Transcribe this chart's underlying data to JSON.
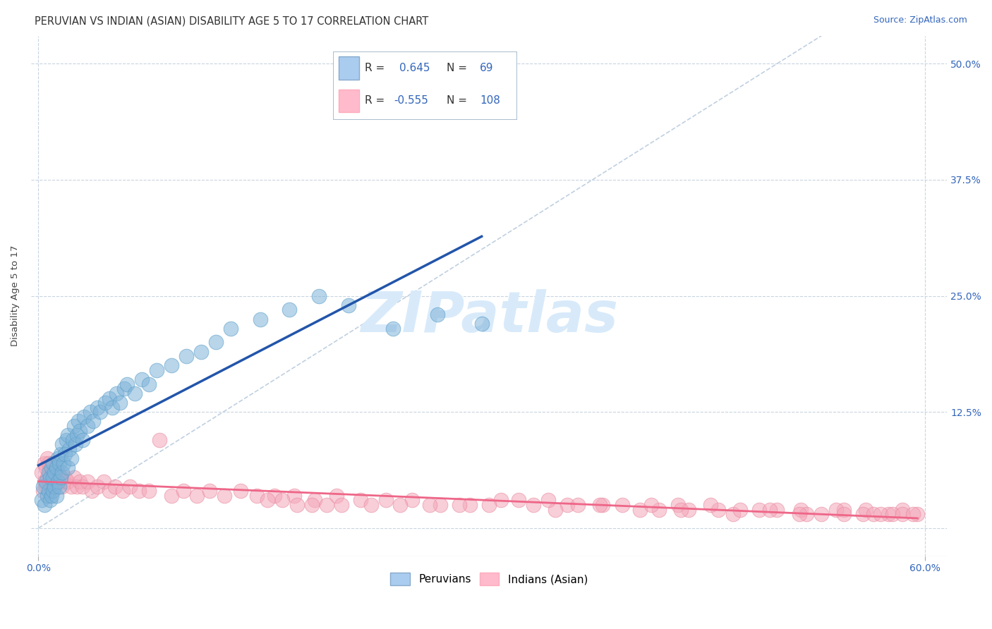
{
  "title": "PERUVIAN VS INDIAN (ASIAN) DISABILITY AGE 5 TO 17 CORRELATION CHART",
  "source": "Source: ZipAtlas.com",
  "ylabel": "Disability Age 5 to 17",
  "xlabel_ticks": [
    0.0,
    0.6
  ],
  "xlabel_labels": [
    "0.0%",
    "60.0%"
  ],
  "ylabel_ticks": [
    0.0,
    0.125,
    0.25,
    0.375,
    0.5
  ],
  "ylabel_labels": [
    "",
    "12.5%",
    "25.0%",
    "37.5%",
    "50.0%"
  ],
  "xlim": [
    -0.005,
    0.615
  ],
  "ylim": [
    -0.03,
    0.53
  ],
  "blue_R": 0.645,
  "blue_N": 69,
  "pink_R": -0.555,
  "pink_N": 108,
  "blue_color": "#7FB3D9",
  "pink_color": "#F4A7B9",
  "blue_edge_color": "#5A9FC9",
  "pink_edge_color": "#E88AA0",
  "blue_line_color": "#2255AA",
  "pink_line_color": "#EE6688",
  "diag_line_color": "#C0D0E0",
  "background_color": "#FFFFFF",
  "grid_color": "#C8D4E0",
  "watermark_text": "ZIPatlas",
  "watermark_color": "#D8EAFA",
  "title_fontsize": 10.5,
  "source_fontsize": 9,
  "axis_label_fontsize": 9.5,
  "tick_fontsize": 10,
  "legend_fontsize": 11,
  "blue_scatter_x": [
    0.002,
    0.003,
    0.004,
    0.005,
    0.006,
    0.007,
    0.007,
    0.008,
    0.008,
    0.009,
    0.009,
    0.01,
    0.01,
    0.01,
    0.011,
    0.011,
    0.012,
    0.012,
    0.013,
    0.013,
    0.014,
    0.014,
    0.015,
    0.015,
    0.016,
    0.016,
    0.017,
    0.018,
    0.019,
    0.02,
    0.02,
    0.021,
    0.022,
    0.023,
    0.024,
    0.025,
    0.026,
    0.027,
    0.028,
    0.03,
    0.031,
    0.033,
    0.035,
    0.037,
    0.04,
    0.042,
    0.045,
    0.048,
    0.05,
    0.053,
    0.055,
    0.058,
    0.06,
    0.065,
    0.07,
    0.075,
    0.08,
    0.09,
    0.1,
    0.11,
    0.12,
    0.13,
    0.15,
    0.17,
    0.19,
    0.21,
    0.24,
    0.27,
    0.3
  ],
  "blue_scatter_y": [
    0.03,
    0.045,
    0.025,
    0.05,
    0.035,
    0.04,
    0.06,
    0.03,
    0.055,
    0.035,
    0.065,
    0.04,
    0.055,
    0.07,
    0.045,
    0.06,
    0.035,
    0.065,
    0.05,
    0.075,
    0.045,
    0.07,
    0.055,
    0.08,
    0.06,
    0.09,
    0.07,
    0.08,
    0.095,
    0.065,
    0.1,
    0.085,
    0.075,
    0.095,
    0.11,
    0.09,
    0.1,
    0.115,
    0.105,
    0.095,
    0.12,
    0.11,
    0.125,
    0.115,
    0.13,
    0.125,
    0.135,
    0.14,
    0.13,
    0.145,
    0.135,
    0.15,
    0.155,
    0.145,
    0.16,
    0.155,
    0.17,
    0.175,
    0.185,
    0.19,
    0.2,
    0.215,
    0.225,
    0.235,
    0.25,
    0.24,
    0.215,
    0.23,
    0.22
  ],
  "pink_scatter_x": [
    0.002,
    0.003,
    0.004,
    0.004,
    0.005,
    0.005,
    0.006,
    0.006,
    0.007,
    0.007,
    0.008,
    0.008,
    0.009,
    0.009,
    0.01,
    0.01,
    0.011,
    0.012,
    0.013,
    0.014,
    0.015,
    0.016,
    0.017,
    0.018,
    0.02,
    0.022,
    0.024,
    0.026,
    0.028,
    0.03,
    0.033,
    0.036,
    0.04,
    0.044,
    0.048,
    0.052,
    0.057,
    0.062,
    0.068,
    0.075,
    0.082,
    0.09,
    0.098,
    0.107,
    0.116,
    0.126,
    0.137,
    0.148,
    0.16,
    0.173,
    0.187,
    0.202,
    0.218,
    0.235,
    0.253,
    0.272,
    0.292,
    0.313,
    0.335,
    0.358,
    0.382,
    0.407,
    0.433,
    0.46,
    0.488,
    0.516,
    0.545,
    0.56,
    0.575,
    0.585,
    0.595,
    0.35,
    0.38,
    0.42,
    0.44,
    0.47,
    0.5,
    0.52,
    0.54,
    0.155,
    0.165,
    0.175,
    0.185,
    0.195,
    0.205,
    0.225,
    0.245,
    0.265,
    0.285,
    0.305,
    0.325,
    0.345,
    0.365,
    0.395,
    0.415,
    0.435,
    0.455,
    0.475,
    0.495,
    0.515,
    0.53,
    0.545,
    0.558,
    0.565,
    0.57,
    0.578,
    0.585,
    0.592
  ],
  "pink_scatter_y": [
    0.06,
    0.04,
    0.07,
    0.05,
    0.065,
    0.045,
    0.055,
    0.075,
    0.05,
    0.07,
    0.045,
    0.065,
    0.055,
    0.04,
    0.06,
    0.045,
    0.05,
    0.055,
    0.06,
    0.05,
    0.055,
    0.045,
    0.05,
    0.055,
    0.05,
    0.045,
    0.055,
    0.045,
    0.05,
    0.045,
    0.05,
    0.04,
    0.045,
    0.05,
    0.04,
    0.045,
    0.04,
    0.045,
    0.04,
    0.04,
    0.095,
    0.035,
    0.04,
    0.035,
    0.04,
    0.035,
    0.04,
    0.035,
    0.035,
    0.035,
    0.03,
    0.035,
    0.03,
    0.03,
    0.03,
    0.025,
    0.025,
    0.03,
    0.025,
    0.025,
    0.025,
    0.02,
    0.025,
    0.02,
    0.02,
    0.02,
    0.02,
    0.02,
    0.015,
    0.02,
    0.015,
    0.02,
    0.025,
    0.02,
    0.02,
    0.015,
    0.02,
    0.015,
    0.02,
    0.03,
    0.03,
    0.025,
    0.025,
    0.025,
    0.025,
    0.025,
    0.025,
    0.025,
    0.025,
    0.025,
    0.03,
    0.03,
    0.025,
    0.025,
    0.025,
    0.02,
    0.025,
    0.02,
    0.02,
    0.015,
    0.015,
    0.015,
    0.015,
    0.015,
    0.015,
    0.015,
    0.015,
    0.015
  ]
}
